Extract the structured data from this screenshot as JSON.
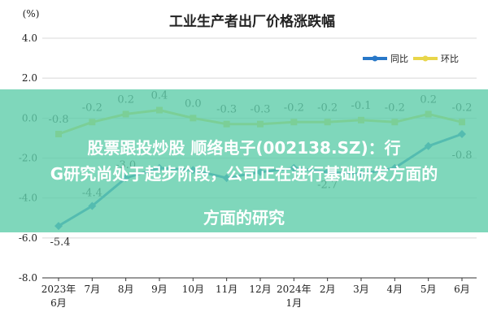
{
  "colors": {
    "yoy": "#2878c8",
    "mom": "#e8d64a",
    "banner": "#5fcdaa",
    "grid": "#d8d8d8",
    "axis_line": "#333333"
  },
  "overlay": {
    "line1": "股票跟投炒股 顺络电子(002138.SZ)：行",
    "line2": "G研究尚处于起步阶段，公司正在进行基础研发方面的",
    "line3": "方面的研究"
  },
  "chart_data": {
    "type": "line",
    "title": "工业生产者出厂价格涨跌幅",
    "unit": "(%)",
    "ylim": [
      -8.0,
      4.0
    ],
    "yticks": [
      "4.0",
      "2.0",
      "0.0",
      "-2.0",
      "-4.0",
      "-6.0",
      "-8.0"
    ],
    "ytick_values": [
      4,
      2,
      0,
      -2,
      -4,
      -6,
      -8
    ],
    "categories": [
      "2023年6月",
      "7月",
      "8月",
      "9月",
      "10月",
      "11月",
      "12月",
      "2024年1月",
      "2月",
      "3月",
      "4月",
      "5月",
      "6月"
    ],
    "xtick_line1": [
      "2023年",
      "7月",
      "8月",
      "9月",
      "10月",
      "11月",
      "12月",
      "2024年",
      "2月",
      "3月",
      "4月",
      "5月",
      "6月"
    ],
    "xtick_line2": [
      "6月",
      "",
      "",
      "",
      "",
      "",
      "",
      "1月",
      "",
      "",
      "",
      "",
      ""
    ],
    "grid": true,
    "legend_position": "top-right",
    "series": [
      {
        "name": "同比",
        "values": [
          -5.4,
          -4.4,
          -3.0,
          -2.5,
          -2.6,
          -3.0,
          -2.7,
          -2.5,
          -2.7,
          -2.8,
          -2.5,
          -1.4,
          -0.8
        ],
        "labels": [
          "-5.4",
          "-4.4",
          "-3.0",
          "",
          "",
          "",
          "",
          "",
          "-2.7",
          "",
          "",
          "",
          "-0.8"
        ]
      },
      {
        "name": "环比",
        "values": [
          -0.8,
          -0.2,
          0.2,
          0.4,
          0.0,
          -0.3,
          -0.3,
          -0.2,
          -0.2,
          -0.1,
          -0.2,
          0.2,
          -0.2
        ],
        "labels": [
          "-0.8",
          "-0.2",
          "0.2",
          "0.4",
          "0.0",
          "-0.3",
          "-0.3",
          "-0.2",
          "-0.2",
          "-0.1",
          "-0.2",
          "0.2",
          "-0.2"
        ]
      }
    ]
  }
}
